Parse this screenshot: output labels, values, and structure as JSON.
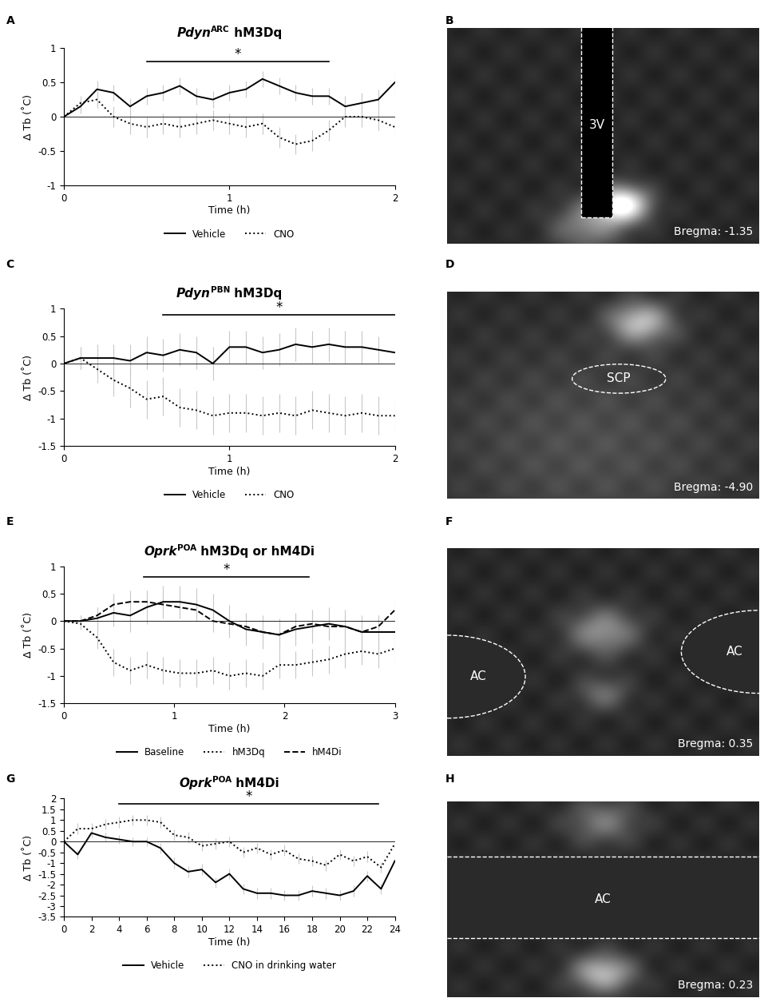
{
  "chart_data": [
    {
      "type": "line",
      "panel": "A",
      "title": [
        {
          "text": "Pdyn",
          "style": "italic"
        },
        {
          "text": "ARC",
          "style": "superscript"
        },
        {
          "text": " hM3Dq",
          "style": "normal"
        }
      ],
      "x_label": "Time (h)",
      "y_label": "Δ Tb (˚C)",
      "xlim": [
        0,
        2
      ],
      "xticks": [
        0,
        1,
        2
      ],
      "ylim": [
        -1,
        1
      ],
      "yticks": [
        -1,
        -0.5,
        0,
        0.5,
        1
      ],
      "legend": "bottom",
      "significance": {
        "x": [
          0.5,
          1.6
        ],
        "y": 0.8,
        "label": "*"
      },
      "x": [
        0,
        0.1,
        0.2,
        0.3,
        0.4,
        0.5,
        0.6,
        0.7,
        0.8,
        0.9,
        1.0,
        1.1,
        1.2,
        1.3,
        1.4,
        1.5,
        1.6,
        1.7,
        1.8,
        1.9,
        2.0
      ],
      "series": [
        {
          "name": "Vehicle",
          "color": "#000000",
          "line_style": "solid",
          "values": [
            0,
            0.15,
            0.4,
            0.35,
            0.15,
            0.3,
            0.35,
            0.45,
            0.3,
            0.25,
            0.35,
            0.4,
            0.55,
            0.45,
            0.35,
            0.3,
            0.3,
            0.15,
            0.2,
            0.25,
            0.5
          ],
          "errors": [
            0,
            0.1,
            0.12,
            0.12,
            0.12,
            0.12,
            0.12,
            0.12,
            0.12,
            0.12,
            0.12,
            0.12,
            0.12,
            0.12,
            0.12,
            0.12,
            0.12,
            0.15,
            0.15,
            0.15,
            0.2
          ]
        },
        {
          "name": "CNO",
          "color": "#000000",
          "line_style": "dotted",
          "values": [
            0,
            0.2,
            0.25,
            0.0,
            -0.1,
            -0.15,
            -0.1,
            -0.15,
            -0.1,
            -0.05,
            -0.1,
            -0.15,
            -0.1,
            -0.3,
            -0.4,
            -0.35,
            -0.2,
            0.0,
            0.0,
            -0.05,
            -0.15
          ],
          "errors": [
            0,
            0.1,
            0.12,
            0.15,
            0.15,
            0.15,
            0.15,
            0.15,
            0.15,
            0.15,
            0.15,
            0.15,
            0.15,
            0.15,
            0.15,
            0.15,
            0.15,
            0.15,
            0.15,
            0.15,
            0.15
          ]
        }
      ]
    },
    {
      "type": "line",
      "panel": "C",
      "title": [
        {
          "text": "Pdyn",
          "style": "italic"
        },
        {
          "text": "PBN",
          "style": "superscript"
        },
        {
          "text": " hM3Dq",
          "style": "normal"
        }
      ],
      "x_label": "Time (h)",
      "y_label": "Δ Tb (˚C)",
      "xlim": [
        0,
        2
      ],
      "xticks": [
        0,
        1,
        2
      ],
      "ylim": [
        -1.5,
        1
      ],
      "yticks": [
        -1.5,
        -1,
        -0.5,
        0,
        0.5,
        1
      ],
      "legend": "bottom",
      "significance": {
        "x": [
          0.6,
          2.0
        ],
        "y": 0.88,
        "label": "*"
      },
      "x": [
        0,
        0.1,
        0.2,
        0.3,
        0.4,
        0.5,
        0.6,
        0.7,
        0.8,
        0.9,
        1.0,
        1.1,
        1.2,
        1.3,
        1.4,
        1.5,
        1.6,
        1.7,
        1.8,
        1.9,
        2.0
      ],
      "series": [
        {
          "name": "Vehicle",
          "color": "#000000",
          "line_style": "solid",
          "values": [
            0,
            0.1,
            0.1,
            0.1,
            0.05,
            0.2,
            0.15,
            0.25,
            0.2,
            0.0,
            0.3,
            0.3,
            0.2,
            0.25,
            0.35,
            0.3,
            0.35,
            0.3,
            0.3,
            0.25,
            0.2
          ],
          "errors": [
            0,
            0.2,
            0.25,
            0.25,
            0.3,
            0.3,
            0.3,
            0.3,
            0.3,
            0.3,
            0.3,
            0.3,
            0.3,
            0.3,
            0.3,
            0.3,
            0.3,
            0.3,
            0.3,
            0.25,
            0.2
          ]
        },
        {
          "name": "CNO",
          "color": "#000000",
          "line_style": "dotted",
          "values": [
            0,
            0.1,
            -0.1,
            -0.3,
            -0.45,
            -0.65,
            -0.6,
            -0.8,
            -0.85,
            -0.95,
            -0.9,
            -0.9,
            -0.95,
            -0.9,
            -0.95,
            -0.85,
            -0.9,
            -0.95,
            -0.9,
            -0.95,
            -0.95
          ],
          "errors": [
            0,
            0.2,
            0.25,
            0.3,
            0.35,
            0.35,
            0.35,
            0.35,
            0.35,
            0.35,
            0.35,
            0.35,
            0.35,
            0.35,
            0.35,
            0.35,
            0.35,
            0.35,
            0.35,
            0.35,
            0.35
          ]
        }
      ]
    },
    {
      "type": "line",
      "panel": "E",
      "title": [
        {
          "text": "Oprk",
          "style": "italic"
        },
        {
          "text": "POA",
          "style": "superscript"
        },
        {
          "text": " hM3Dq or hM4Di",
          "style": "normal"
        }
      ],
      "x_label": "Time (h)",
      "y_label": "Δ Tb (˚C)",
      "xlim": [
        0,
        3
      ],
      "xticks": [
        0,
        1,
        2,
        3
      ],
      "ylim": [
        -1.5,
        1
      ],
      "yticks": [
        -1.5,
        -1,
        -0.5,
        0,
        0.5,
        1
      ],
      "legend": "bottom",
      "significance": {
        "x": [
          0.72,
          2.22
        ],
        "y": 0.8,
        "label": "*"
      },
      "x": [
        0,
        0.15,
        0.3,
        0.45,
        0.6,
        0.75,
        0.9,
        1.05,
        1.2,
        1.35,
        1.5,
        1.65,
        1.8,
        1.95,
        2.1,
        2.25,
        2.4,
        2.55,
        2.7,
        2.85,
        3.0
      ],
      "series": [
        {
          "name": "Baseline",
          "color": "#000000",
          "line_style": "solid",
          "values": [
            0,
            0,
            0.05,
            0.15,
            0.1,
            0.25,
            0.35,
            0.35,
            0.3,
            0.2,
            0.0,
            -0.15,
            -0.2,
            -0.25,
            -0.15,
            -0.1,
            -0.05,
            -0.1,
            -0.2,
            -0.2,
            -0.2
          ],
          "errors": [
            0,
            0.1,
            0.2,
            0.25,
            0.3,
            0.3,
            0.3,
            0.3,
            0.3,
            0.3,
            0.3,
            0.3,
            0.3,
            0.3,
            0.3,
            0.3,
            0.3,
            0.3,
            0.3,
            0.3,
            0.3
          ]
        },
        {
          "name": "hM3Dq",
          "color": "#000000",
          "line_style": "dotted",
          "values": [
            0,
            -0.05,
            -0.3,
            -0.75,
            -0.9,
            -0.8,
            -0.9,
            -0.95,
            -0.95,
            -0.9,
            -1.0,
            -0.95,
            -1.0,
            -0.8,
            -0.8,
            -0.75,
            -0.7,
            -0.6,
            -0.55,
            -0.6,
            -0.5
          ],
          "errors": [
            0,
            0.1,
            0.2,
            0.25,
            0.25,
            0.25,
            0.25,
            0.25,
            0.25,
            0.25,
            0.25,
            0.25,
            0.25,
            0.25,
            0.25,
            0.25,
            0.25,
            0.25,
            0.25,
            0.25,
            0.25
          ]
        },
        {
          "name": "hM4Di",
          "color": "#000000",
          "line_style": "dashed",
          "values": [
            0,
            0,
            0.1,
            0.3,
            0.35,
            0.35,
            0.3,
            0.25,
            0.2,
            0.0,
            -0.05,
            -0.1,
            -0.2,
            -0.25,
            -0.1,
            -0.05,
            -0.1,
            -0.1,
            -0.2,
            -0.1,
            0.2
          ],
          "errors": [
            0,
            0.1,
            0.15,
            0.2,
            0.2,
            0.2,
            0.2,
            0.2,
            0.2,
            0.2,
            0.2,
            0.2,
            0.2,
            0.2,
            0.2,
            0.2,
            0.2,
            0.2,
            0.2,
            0.2,
            0.2
          ]
        }
      ]
    },
    {
      "type": "line",
      "panel": "G",
      "title": [
        {
          "text": "Oprk",
          "style": "italic"
        },
        {
          "text": "POA",
          "style": "superscript"
        },
        {
          "text": " hM4Di",
          "style": "normal"
        }
      ],
      "x_label": "Time (h)",
      "y_label": "Δ Tb (˚C)",
      "xlim": [
        0,
        24
      ],
      "xticks": [
        0,
        2,
        4,
        6,
        8,
        10,
        12,
        14,
        16,
        18,
        20,
        22,
        24
      ],
      "ylim": [
        -3.5,
        2
      ],
      "yticks": [
        -3.5,
        -3,
        -2.5,
        -2,
        -1.5,
        -1,
        -0.5,
        0,
        0.5,
        1,
        1.5,
        2
      ],
      "legend": "bottom",
      "significance": {
        "x": [
          4,
          22.8
        ],
        "y": 1.75,
        "label": "*"
      },
      "x": [
        0,
        1,
        2,
        3,
        4,
        5,
        6,
        7,
        8,
        9,
        10,
        11,
        12,
        13,
        14,
        15,
        16,
        17,
        18,
        19,
        20,
        21,
        22,
        23,
        24
      ],
      "series": [
        {
          "name": "Vehicle",
          "color": "#000000",
          "line_style": "solid",
          "values": [
            0,
            -0.6,
            0.4,
            0.2,
            0.1,
            0.0,
            0.0,
            -0.3,
            -1.0,
            -1.4,
            -1.3,
            -1.9,
            -1.5,
            -2.2,
            -2.4,
            -2.4,
            -2.5,
            -2.5,
            -2.3,
            -2.4,
            -2.5,
            -2.3,
            -1.6,
            -2.2,
            -0.9
          ],
          "errors": [
            0,
            0.2,
            0.2,
            0.2,
            0.2,
            0.2,
            0.2,
            0.25,
            0.25,
            0.25,
            0.25,
            0.25,
            0.25,
            0.25,
            0.25,
            0.25,
            0.25,
            0.25,
            0.25,
            0.25,
            0.25,
            0.25,
            0.25,
            0.25,
            0.25
          ]
        },
        {
          "name": "CNO in drinking water",
          "color": "#000000",
          "line_style": "dotted",
          "values": [
            0,
            0.6,
            0.6,
            0.8,
            0.9,
            1.0,
            1.0,
            0.9,
            0.3,
            0.2,
            -0.2,
            -0.1,
            0.0,
            -0.5,
            -0.3,
            -0.6,
            -0.4,
            -0.8,
            -0.9,
            -1.1,
            -0.6,
            -0.9,
            -0.7,
            -1.2,
            -0.1
          ],
          "errors": [
            0,
            0.25,
            0.25,
            0.25,
            0.25,
            0.25,
            0.25,
            0.25,
            0.25,
            0.25,
            0.25,
            0.25,
            0.25,
            0.25,
            0.25,
            0.25,
            0.25,
            0.25,
            0.25,
            0.25,
            0.25,
            0.25,
            0.25,
            0.25,
            0.25
          ]
        }
      ]
    }
  ],
  "images": [
    {
      "panel": "B",
      "labels": [
        "3V"
      ],
      "caption": "Bregma: -1.35"
    },
    {
      "panel": "D",
      "labels": [
        "SCP"
      ],
      "caption": "Bregma: -4.90"
    },
    {
      "panel": "F",
      "labels": [
        "AC",
        "AC"
      ],
      "caption": "Bregma: 0.35"
    },
    {
      "panel": "H",
      "labels": [
        "AC"
      ],
      "caption": "Bregma: 0.23"
    }
  ]
}
